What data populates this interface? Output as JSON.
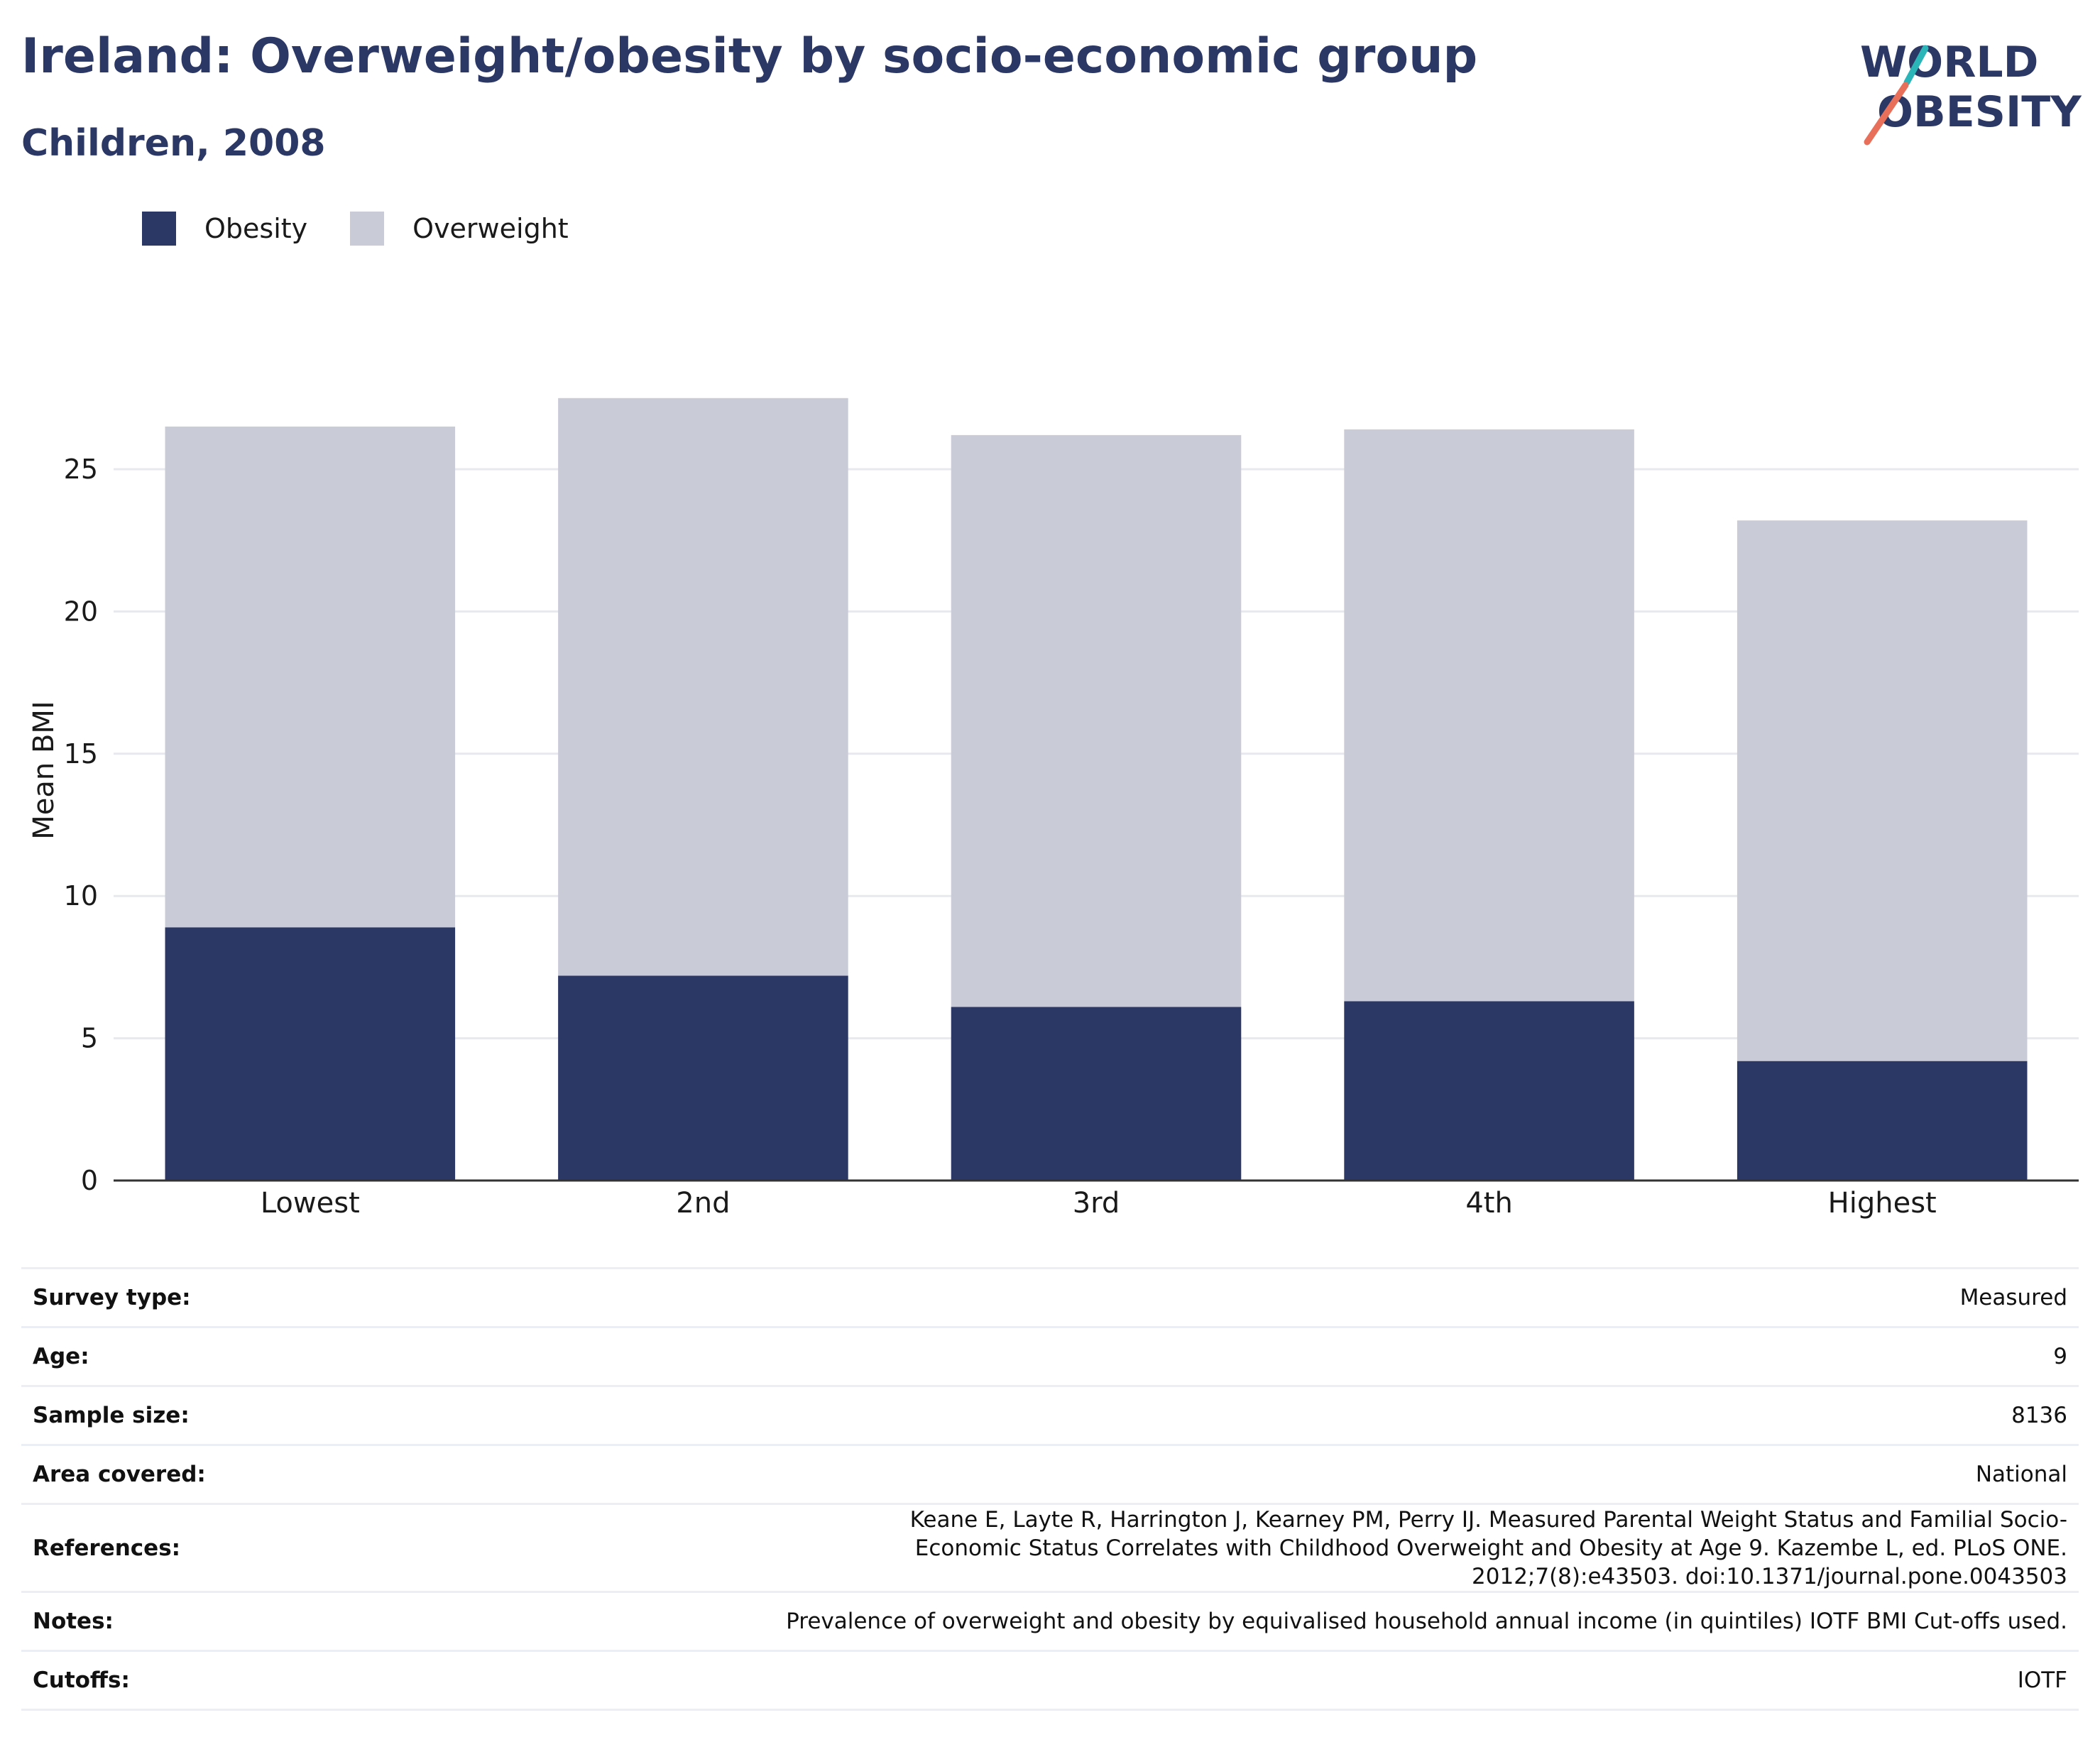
{
  "header": {
    "title": "Ireland: Overweight/obesity by socio-economic group",
    "subtitle": "Children, 2008"
  },
  "logo": {
    "line1": "WORLD",
    "line2": "OBESITY",
    "colors": {
      "text": "#2b3764",
      "accent_teal": "#2bb5b8",
      "accent_coral": "#e8705a"
    }
  },
  "legend": {
    "items": [
      {
        "label": "Obesity",
        "color": "#2b3764"
      },
      {
        "label": "Overweight",
        "color": "#c9cbd7"
      }
    ]
  },
  "chart_data": {
    "type": "bar",
    "stacked": true,
    "categories": [
      "Lowest",
      "2nd",
      "3rd",
      "4th",
      "Highest"
    ],
    "series": [
      {
        "name": "Obesity",
        "color": "#2b3764",
        "values": [
          8.9,
          7.2,
          6.1,
          6.3,
          4.2
        ]
      },
      {
        "name": "Overweight",
        "color": "#c9cbd7",
        "values": [
          17.6,
          20.3,
          20.1,
          20.1,
          19.0
        ]
      }
    ],
    "title": "",
    "xlabel": "",
    "ylabel": "Mean BMI",
    "ylim": [
      0,
      28
    ],
    "yticks": [
      0,
      5,
      10,
      15,
      20,
      25
    ],
    "grid": true,
    "legend_position": "top-left"
  },
  "info": {
    "rows": [
      {
        "label": "Survey type:",
        "value": "Measured"
      },
      {
        "label": "Age:",
        "value": "9"
      },
      {
        "label": "Sample size:",
        "value": "8136"
      },
      {
        "label": "Area covered:",
        "value": "National"
      },
      {
        "label": "References:",
        "value": "Keane E, Layte R, Harrington J, Kearney PM, Perry IJ. Measured Parental Weight Status and Familial Socio-Economic Status Correlates with Childhood Overweight and Obesity at Age 9. Kazembe L, ed. PLoS ONE. 2012;7(8):e43503. doi:10.1371/journal.pone.0043503"
      },
      {
        "label": "Notes:",
        "value": "Prevalence of overweight and obesity by equivalised household annual income (in quintiles) IOTF BMI Cut-offs used."
      },
      {
        "label": "Cutoffs:",
        "value": "IOTF"
      }
    ]
  }
}
